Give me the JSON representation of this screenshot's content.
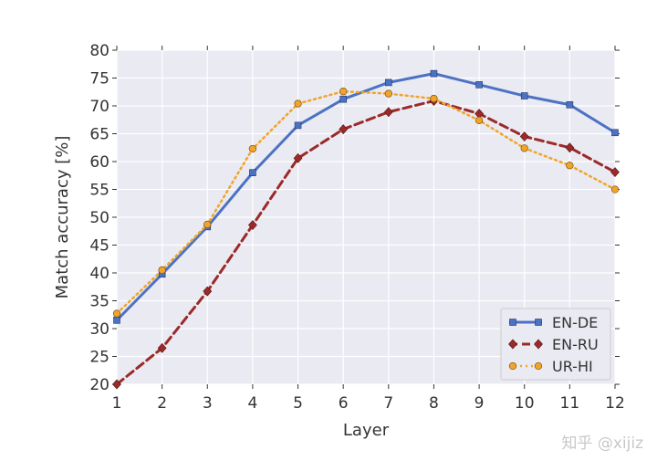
{
  "chart_data": {
    "type": "line",
    "xlabel": "Layer",
    "ylabel": "Match accuracy [%]",
    "x": [
      1,
      2,
      3,
      4,
      5,
      6,
      7,
      8,
      9,
      10,
      11,
      12
    ],
    "xlim": [
      1,
      12
    ],
    "ylim": [
      20,
      80
    ],
    "xticks": [
      1,
      2,
      3,
      4,
      5,
      6,
      7,
      8,
      9,
      10,
      11,
      12
    ],
    "yticks": [
      20,
      25,
      30,
      35,
      40,
      45,
      50,
      55,
      60,
      65,
      70,
      75,
      80
    ],
    "grid": true,
    "legend_position": "lower-right",
    "series": [
      {
        "name": "EN-DE",
        "color": "#4c72c4",
        "line_style": "solid",
        "marker": "square",
        "values": [
          31.5,
          39.8,
          48.3,
          58.0,
          66.5,
          71.2,
          74.2,
          75.8,
          73.8,
          71.8,
          70.2,
          65.2
        ]
      },
      {
        "name": "EN-RU",
        "color": "#9b2a2a",
        "line_style": "dashed",
        "marker": "diamond",
        "values": [
          20.0,
          26.5,
          36.7,
          48.6,
          60.6,
          65.8,
          68.9,
          70.9,
          68.6,
          64.5,
          62.5,
          58.1
        ]
      },
      {
        "name": "UR-HI",
        "color": "#f0a52a",
        "line_style": "dotted",
        "marker": "circle",
        "values": [
          32.7,
          40.5,
          48.7,
          62.3,
          70.4,
          72.6,
          72.2,
          71.3,
          67.4,
          62.4,
          59.3,
          55.0
        ]
      }
    ]
  },
  "watermark": "知乎 @xijiz"
}
